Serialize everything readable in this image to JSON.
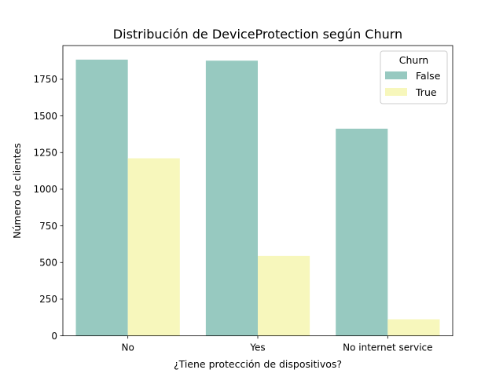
{
  "chart_data": {
    "type": "bar",
    "title": "Distribución de DeviceProtection según Churn",
    "xlabel": "¿Tiene protección de dispositivos?",
    "ylabel": "Número de clientes",
    "categories": [
      "No",
      "Yes",
      "No internet service"
    ],
    "series": [
      {
        "name": "False",
        "color": "#97c9c0",
        "values": [
          1884,
          1877,
          1413
        ]
      },
      {
        "name": "True",
        "color": "#f7f7bc",
        "values": [
          1211,
          545,
          113
        ]
      }
    ],
    "ylim": [
      0,
      1980
    ],
    "yticks": [
      0,
      250,
      500,
      750,
      1000,
      1250,
      1500,
      1750
    ],
    "grid": false,
    "legend": {
      "title": "Churn",
      "position": "top-right"
    }
  }
}
